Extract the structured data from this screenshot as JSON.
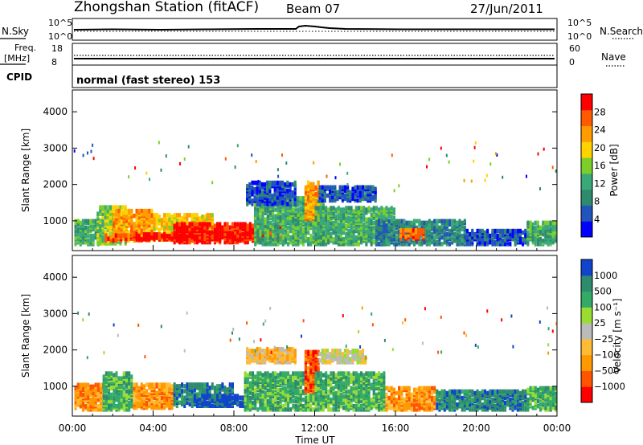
{
  "header": {
    "station": "Zhongshan Station (fitACF)",
    "beam": "Beam 07",
    "date": "27/Jun/2011"
  },
  "top_panels": {
    "sky": {
      "left_label": "N.Sky",
      "right_label": "N.Search",
      "left_ticks": [
        "10^5",
        "10^0"
      ],
      "right_ticks": [
        "10^5",
        "10^0"
      ]
    },
    "freq": {
      "left_label_1": "Freq.",
      "left_label_2": "[MHz]",
      "right_label": "Nave",
      "left_ticks": [
        "18",
        "8"
      ],
      "right_ticks": [
        "60",
        "0"
      ]
    },
    "cpid": {
      "label": "CPID",
      "text": "normal (fast stereo) 153"
    }
  },
  "colors": {
    "power": [
      "#0000ff",
      "#2255bb",
      "#2e8b6e",
      "#3aa97a",
      "#7ccf2a",
      "#ffd200",
      "#ff9c00",
      "#ff5a00",
      "#ff0000"
    ],
    "velocity": [
      "#ff0000",
      "#ff5500",
      "#ff9900",
      "#ffbb33",
      "#bbbbbb",
      "#99dd33",
      "#33aa66",
      "#2e8b6e",
      "#1144cc"
    ]
  },
  "chart_data": [
    {
      "type": "heatmap",
      "name": "power",
      "ylabel": "Slant Range [km]",
      "yticks": [
        "4000",
        "3000",
        "2000",
        "1000"
      ],
      "ylim": [
        180,
        4600
      ],
      "xticks": [
        "00:00",
        "04:00",
        "08:00",
        "12:00",
        "16:00",
        "20:00",
        "00:00"
      ],
      "colorbar_label": "Power [dB]",
      "colorbar_ticks": [
        "28",
        "24",
        "20",
        "16",
        "12",
        "8",
        "4"
      ],
      "blocks": [
        {
          "t0": 0.1,
          "t1": 1.3,
          "r0": 300,
          "r1": 950,
          "level": 3
        },
        {
          "t0": 1.2,
          "t1": 2.6,
          "r0": 320,
          "r1": 1350,
          "level": 4
        },
        {
          "t0": 2.0,
          "t1": 4.0,
          "r0": 400,
          "r1": 1250,
          "level": 6
        },
        {
          "t0": 4.0,
          "t1": 7.0,
          "r0": 420,
          "r1": 1100,
          "level": 5
        },
        {
          "t0": 1.6,
          "t1": 3.0,
          "r0": 400,
          "r1": 560,
          "level": 7
        },
        {
          "t0": 3.0,
          "t1": 7.0,
          "r0": 430,
          "r1": 600,
          "level": 8
        },
        {
          "t0": 5.0,
          "t1": 9.6,
          "r0": 350,
          "r1": 850,
          "level": 8
        },
        {
          "t0": 9.6,
          "t1": 10.4,
          "r0": 350,
          "r1": 800,
          "level": 7
        },
        {
          "t0": 9.0,
          "t1": 12.5,
          "r0": 300,
          "r1": 1600,
          "level": 3
        },
        {
          "t0": 8.6,
          "t1": 11.0,
          "r0": 1400,
          "r1": 2000,
          "level": 1
        },
        {
          "t0": 11.5,
          "t1": 12.2,
          "r0": 1000,
          "r1": 2000,
          "level": 6
        },
        {
          "t0": 12.2,
          "t1": 15.0,
          "r0": 1500,
          "r1": 1900,
          "level": 1
        },
        {
          "t0": 12.0,
          "t1": 16.0,
          "r0": 300,
          "r1": 1300,
          "level": 3
        },
        {
          "t0": 15.0,
          "t1": 19.5,
          "r0": 300,
          "r1": 950,
          "level": 2
        },
        {
          "t0": 16.2,
          "t1": 17.4,
          "r0": 450,
          "r1": 700,
          "level": 7
        },
        {
          "t0": 19.5,
          "t1": 22.5,
          "r0": 300,
          "r1": 700,
          "level": 1
        },
        {
          "t0": 22.5,
          "t1": 24.0,
          "r0": 300,
          "r1": 900,
          "level": 3
        }
      ]
    },
    {
      "type": "heatmap",
      "name": "velocity",
      "ylabel": "Slant Range [km]",
      "yticks": [
        "4000",
        "3000",
        "2000",
        "1000"
      ],
      "ylim": [
        180,
        4600
      ],
      "xticks": [
        "00:00",
        "04:00",
        "08:00",
        "12:00",
        "16:00",
        "20:00",
        "00:00"
      ],
      "xlabel": "Time UT",
      "colorbar_label": "Velocity [m s⁻¹]",
      "colorbar_ticks": [
        "1000",
        "500",
        "100",
        "25",
        "−25",
        "−100",
        "−500",
        "−1000"
      ],
      "blocks": [
        {
          "t0": 0.1,
          "t1": 1.5,
          "r0": 300,
          "r1": 1000,
          "level": 2
        },
        {
          "t0": 1.5,
          "t1": 3.0,
          "r0": 300,
          "r1": 1300,
          "level": 6
        },
        {
          "t0": 3.0,
          "t1": 5.0,
          "r0": 350,
          "r1": 1000,
          "level": 2
        },
        {
          "t0": 5.0,
          "t1": 8.0,
          "r0": 400,
          "r1": 1000,
          "level": 7
        },
        {
          "t0": 6.0,
          "t1": 8.5,
          "r0": 400,
          "r1": 700,
          "level": 8
        },
        {
          "t0": 8.5,
          "t1": 12.0,
          "r0": 300,
          "r1": 1300,
          "level": 6
        },
        {
          "t0": 8.6,
          "t1": 11.0,
          "r0": 1600,
          "r1": 2000,
          "level": 3
        },
        {
          "t0": 11.5,
          "t1": 12.2,
          "r0": 800,
          "r1": 1900,
          "level": 1
        },
        {
          "t0": 12.2,
          "t1": 14.5,
          "r0": 1600,
          "r1": 1950,
          "level": 4
        },
        {
          "t0": 12.0,
          "t1": 15.5,
          "r0": 300,
          "r1": 1300,
          "level": 6
        },
        {
          "t0": 15.5,
          "t1": 18.0,
          "r0": 300,
          "r1": 900,
          "level": 2
        },
        {
          "t0": 18.0,
          "t1": 22.5,
          "r0": 300,
          "r1": 800,
          "level": 7
        },
        {
          "t0": 22.5,
          "t1": 24.0,
          "r0": 300,
          "r1": 900,
          "level": 6
        }
      ]
    }
  ]
}
